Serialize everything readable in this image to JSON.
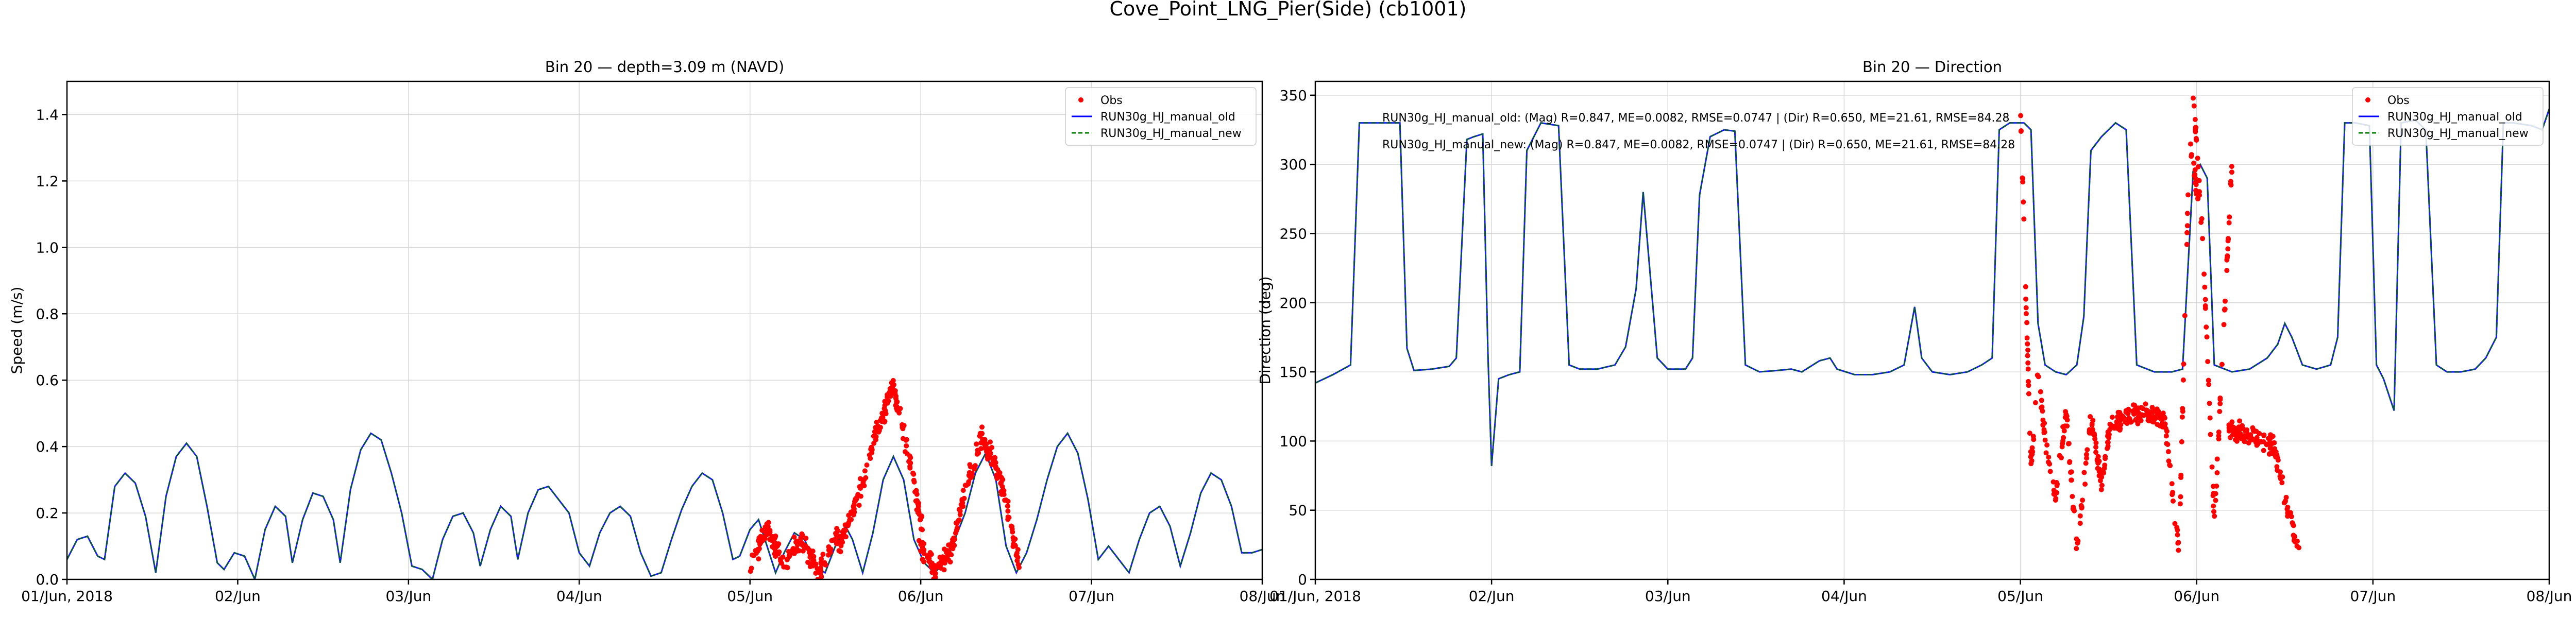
{
  "figure": {
    "suptitle": "Cove_Point_LNG_Pier(Side) (cb1001)"
  },
  "legend": {
    "obs": "Obs",
    "old": "RUN30g_HJ_manual_old",
    "new": "RUN30g_HJ_manual_new"
  },
  "colors": {
    "obs": "#ff0000",
    "old": "#0000ff",
    "new": "#008000",
    "model_overlap": "#0a5050"
  },
  "stats": {
    "old_line": "RUN30g_HJ_manual_old: (Mag) R=0.847, ME=0.0082, RMSE=0.0747 | (Dir) R=0.650, ME=21.61, RMSE=84.28",
    "new_line": "RUN30g_HJ_manual_new: (Mag) R=0.847, ME=0.0082, RMSE=0.0747 | (Dir) R=0.650, ME=21.61, RMSE=84.28"
  },
  "chart_data": [
    {
      "type": "line",
      "title": "Bin 20 — depth=3.09 m (NAVD)",
      "xlabel": "",
      "ylabel": "Speed (m/s)",
      "x_unit": "days since 2018-06-01 00:00",
      "xlim": [
        0,
        7
      ],
      "ylim": [
        0,
        1.5
      ],
      "xticks": [
        0,
        1,
        2,
        3,
        4,
        5,
        6,
        7
      ],
      "xtick_labels": [
        "01/Jun, 2018",
        "02/Jun",
        "03/Jun",
        "04/Jun",
        "05/Jun",
        "06/Jun",
        "07/Jun",
        "08/Jun"
      ],
      "yticks": [
        0,
        0.2,
        0.4,
        0.6,
        0.8,
        1.0,
        1.2,
        1.4
      ],
      "ytick_labels": [
        "0.0",
        "0.2",
        "0.4",
        "0.6",
        "0.8",
        "1.0",
        "1.2",
        "1.4"
      ],
      "grid": true,
      "legend_position": "top-right",
      "model_series": [
        [
          0.0,
          0.06
        ],
        [
          0.06,
          0.12
        ],
        [
          0.12,
          0.13
        ],
        [
          0.18,
          0.07
        ],
        [
          0.22,
          0.06
        ],
        [
          0.28,
          0.28
        ],
        [
          0.34,
          0.32
        ],
        [
          0.4,
          0.29
        ],
        [
          0.46,
          0.19
        ],
        [
          0.52,
          0.02
        ],
        [
          0.58,
          0.25
        ],
        [
          0.64,
          0.37
        ],
        [
          0.7,
          0.41
        ],
        [
          0.76,
          0.37
        ],
        [
          0.82,
          0.22
        ],
        [
          0.88,
          0.05
        ],
        [
          0.92,
          0.03
        ],
        [
          0.98,
          0.08
        ],
        [
          1.04,
          0.07
        ],
        [
          1.1,
          0.0
        ],
        [
          1.16,
          0.15
        ],
        [
          1.22,
          0.22
        ],
        [
          1.28,
          0.19
        ],
        [
          1.32,
          0.05
        ],
        [
          1.38,
          0.18
        ],
        [
          1.44,
          0.26
        ],
        [
          1.5,
          0.25
        ],
        [
          1.56,
          0.18
        ],
        [
          1.6,
          0.05
        ],
        [
          1.66,
          0.27
        ],
        [
          1.72,
          0.39
        ],
        [
          1.78,
          0.44
        ],
        [
          1.84,
          0.42
        ],
        [
          1.9,
          0.32
        ],
        [
          1.96,
          0.2
        ],
        [
          2.02,
          0.04
        ],
        [
          2.08,
          0.03
        ],
        [
          2.14,
          0.0
        ],
        [
          2.2,
          0.12
        ],
        [
          2.26,
          0.19
        ],
        [
          2.32,
          0.2
        ],
        [
          2.38,
          0.14
        ],
        [
          2.42,
          0.04
        ],
        [
          2.48,
          0.15
        ],
        [
          2.54,
          0.22
        ],
        [
          2.6,
          0.19
        ],
        [
          2.64,
          0.06
        ],
        [
          2.7,
          0.2
        ],
        [
          2.76,
          0.27
        ],
        [
          2.82,
          0.28
        ],
        [
          2.88,
          0.24
        ],
        [
          2.94,
          0.2
        ],
        [
          3.0,
          0.08
        ],
        [
          3.06,
          0.04
        ],
        [
          3.12,
          0.14
        ],
        [
          3.18,
          0.2
        ],
        [
          3.24,
          0.22
        ],
        [
          3.3,
          0.19
        ],
        [
          3.36,
          0.08
        ],
        [
          3.42,
          0.01
        ],
        [
          3.48,
          0.02
        ],
        [
          3.54,
          0.12
        ],
        [
          3.6,
          0.21
        ],
        [
          3.66,
          0.28
        ],
        [
          3.72,
          0.32
        ],
        [
          3.78,
          0.3
        ],
        [
          3.84,
          0.2
        ],
        [
          3.9,
          0.06
        ],
        [
          3.94,
          0.07
        ],
        [
          4.0,
          0.15
        ],
        [
          4.05,
          0.18
        ],
        [
          4.1,
          0.1
        ],
        [
          4.15,
          0.02
        ],
        [
          4.2,
          0.08
        ],
        [
          4.26,
          0.14
        ],
        [
          4.32,
          0.12
        ],
        [
          4.38,
          0.04
        ],
        [
          4.44,
          0.02
        ],
        [
          4.5,
          0.1
        ],
        [
          4.56,
          0.16
        ],
        [
          4.6,
          0.12
        ],
        [
          4.66,
          0.02
        ],
        [
          4.72,
          0.14
        ],
        [
          4.78,
          0.3
        ],
        [
          4.84,
          0.37
        ],
        [
          4.9,
          0.3
        ],
        [
          4.96,
          0.12
        ],
        [
          5.02,
          0.05
        ],
        [
          5.08,
          0.02
        ],
        [
          5.14,
          0.05
        ],
        [
          5.2,
          0.12
        ],
        [
          5.26,
          0.2
        ],
        [
          5.32,
          0.32
        ],
        [
          5.38,
          0.38
        ],
        [
          5.44,
          0.3
        ],
        [
          5.5,
          0.1
        ],
        [
          5.56,
          0.02
        ],
        [
          5.62,
          0.08
        ],
        [
          5.68,
          0.18
        ],
        [
          5.74,
          0.3
        ],
        [
          5.8,
          0.4
        ],
        [
          5.86,
          0.44
        ],
        [
          5.92,
          0.38
        ],
        [
          5.98,
          0.24
        ],
        [
          6.04,
          0.06
        ],
        [
          6.1,
          0.1
        ],
        [
          6.16,
          0.06
        ],
        [
          6.22,
          0.02
        ],
        [
          6.28,
          0.12
        ],
        [
          6.34,
          0.2
        ],
        [
          6.4,
          0.22
        ],
        [
          6.46,
          0.16
        ],
        [
          6.52,
          0.04
        ],
        [
          6.58,
          0.14
        ],
        [
          6.64,
          0.26
        ],
        [
          6.7,
          0.32
        ],
        [
          6.76,
          0.3
        ],
        [
          6.82,
          0.22
        ],
        [
          6.88,
          0.08
        ],
        [
          6.94,
          0.08
        ],
        [
          7.0,
          0.09
        ]
      ],
      "obs_windows": [
        {
          "x_start": 4.0,
          "x_end": 4.52,
          "segments": [
            [
              0.0,
              0.04
            ],
            [
              0.1,
              0.15
            ],
            [
              0.2,
              0.05
            ],
            [
              0.3,
              0.12
            ],
            [
              0.4,
              0.02
            ],
            [
              0.52,
              0.14
            ]
          ]
        },
        {
          "x_start": 4.52,
          "x_end": 5.02,
          "segments": [
            [
              0.0,
              0.1
            ],
            [
              0.15,
              0.3
            ],
            [
              0.22,
              0.45
            ],
            [
              0.32,
              0.58
            ],
            [
              0.42,
              0.35
            ],
            [
              0.5,
              0.12
            ]
          ]
        },
        {
          "x_start": 4.98,
          "x_end": 5.2,
          "segments": [
            [
              0.0,
              0.12
            ],
            [
              0.1,
              0.03
            ],
            [
              0.22,
              0.1
            ]
          ]
        },
        {
          "x_start": 5.18,
          "x_end": 5.58,
          "segments": [
            [
              0.0,
              0.1
            ],
            [
              0.1,
              0.3
            ],
            [
              0.18,
              0.43
            ],
            [
              0.28,
              0.32
            ],
            [
              0.4,
              0.04
            ]
          ]
        }
      ]
    },
    {
      "type": "line",
      "title": "Bin 20 — Direction",
      "xlabel": "",
      "ylabel": "Direction (deg)",
      "x_unit": "days since 2018-06-01 00:00",
      "xlim": [
        0,
        7
      ],
      "ylim": [
        0,
        360
      ],
      "xticks": [
        0,
        1,
        2,
        3,
        4,
        5,
        6,
        7
      ],
      "xtick_labels": [
        "01/Jun, 2018",
        "02/Jun",
        "03/Jun",
        "04/Jun",
        "05/Jun",
        "06/Jun",
        "07/Jun",
        "08/Jun"
      ],
      "yticks": [
        0,
        50,
        100,
        150,
        200,
        250,
        300,
        350
      ],
      "ytick_labels": [
        "0",
        "50",
        "100",
        "150",
        "200",
        "250",
        "300",
        "350"
      ],
      "grid": true,
      "legend_position": "top-right",
      "model_series": [
        [
          0.0,
          142
        ],
        [
          0.1,
          148
        ],
        [
          0.2,
          155
        ],
        [
          0.25,
          330
        ],
        [
          0.3,
          330
        ],
        [
          0.4,
          330
        ],
        [
          0.48,
          330
        ],
        [
          0.52,
          167
        ],
        [
          0.56,
          151
        ],
        [
          0.66,
          152
        ],
        [
          0.76,
          154
        ],
        [
          0.8,
          160
        ],
        [
          0.86,
          318
        ],
        [
          0.9,
          320
        ],
        [
          0.95,
          322
        ],
        [
          0.98,
          160
        ],
        [
          1.0,
          82
        ],
        [
          1.04,
          145
        ],
        [
          1.1,
          148
        ],
        [
          1.16,
          150
        ],
        [
          1.2,
          310
        ],
        [
          1.28,
          330
        ],
        [
          1.38,
          328
        ],
        [
          1.44,
          155
        ],
        [
          1.5,
          152
        ],
        [
          1.6,
          152
        ],
        [
          1.7,
          155
        ],
        [
          1.76,
          168
        ],
        [
          1.82,
          210
        ],
        [
          1.86,
          280
        ],
        [
          1.9,
          220
        ],
        [
          1.94,
          160
        ],
        [
          2.0,
          152
        ],
        [
          2.1,
          152
        ],
        [
          2.14,
          160
        ],
        [
          2.18,
          278
        ],
        [
          2.24,
          320
        ],
        [
          2.32,
          325
        ],
        [
          2.38,
          324
        ],
        [
          2.44,
          155
        ],
        [
          2.52,
          150
        ],
        [
          2.62,
          151
        ],
        [
          2.7,
          152
        ],
        [
          2.76,
          150
        ],
        [
          2.86,
          158
        ],
        [
          2.92,
          160
        ],
        [
          2.96,
          152
        ],
        [
          3.06,
          148
        ],
        [
          3.16,
          148
        ],
        [
          3.26,
          150
        ],
        [
          3.34,
          155
        ],
        [
          3.4,
          197
        ],
        [
          3.44,
          160
        ],
        [
          3.5,
          150
        ],
        [
          3.6,
          148
        ],
        [
          3.7,
          150
        ],
        [
          3.78,
          155
        ],
        [
          3.84,
          160
        ],
        [
          3.88,
          325
        ],
        [
          3.94,
          330
        ],
        [
          4.02,
          330
        ],
        [
          4.06,
          325
        ],
        [
          4.1,
          185
        ],
        [
          4.14,
          155
        ],
        [
          4.2,
          150
        ],
        [
          4.26,
          148
        ],
        [
          4.32,
          155
        ],
        [
          4.36,
          190
        ],
        [
          4.4,
          310
        ],
        [
          4.46,
          320
        ],
        [
          4.54,
          330
        ],
        [
          4.6,
          325
        ],
        [
          4.66,
          155
        ],
        [
          4.76,
          150
        ],
        [
          4.86,
          150
        ],
        [
          4.92,
          152
        ],
        [
          4.98,
          295
        ],
        [
          5.02,
          300
        ],
        [
          5.06,
          290
        ],
        [
          5.1,
          155
        ],
        [
          5.2,
          150
        ],
        [
          5.3,
          152
        ],
        [
          5.4,
          160
        ],
        [
          5.46,
          170
        ],
        [
          5.5,
          185
        ],
        [
          5.54,
          175
        ],
        [
          5.6,
          155
        ],
        [
          5.68,
          152
        ],
        [
          5.76,
          155
        ],
        [
          5.8,
          175
        ],
        [
          5.84,
          330
        ],
        [
          5.9,
          330
        ],
        [
          5.98,
          328
        ],
        [
          6.02,
          155
        ],
        [
          6.06,
          145
        ],
        [
          6.12,
          122
        ],
        [
          6.16,
          330
        ],
        [
          6.24,
          332
        ],
        [
          6.3,
          325
        ],
        [
          6.36,
          155
        ],
        [
          6.42,
          150
        ],
        [
          6.5,
          150
        ],
        [
          6.58,
          152
        ],
        [
          6.64,
          160
        ],
        [
          6.7,
          175
        ],
        [
          6.74,
          330
        ],
        [
          6.8,
          330
        ],
        [
          6.9,
          328
        ],
        [
          6.96,
          325
        ],
        [
          7.0,
          340
        ]
      ],
      "obs_windows": [
        {
          "x_start": 4.0,
          "x_end": 4.52,
          "segments": [
            [
              0.0,
              340
            ],
            [
              0.06,
              80
            ],
            [
              0.1,
              150
            ],
            [
              0.14,
              100
            ],
            [
              0.2,
              60
            ],
            [
              0.26,
              120
            ],
            [
              0.32,
              20
            ],
            [
              0.4,
              115
            ],
            [
              0.46,
              70
            ],
            [
              0.52,
              120
            ]
          ]
        },
        {
          "x_start": 4.52,
          "x_end": 5.02,
          "segments": [
            [
              0.0,
              112
            ],
            [
              0.1,
              118
            ],
            [
              0.2,
              120
            ],
            [
              0.3,
              115
            ],
            [
              0.38,
              20
            ],
            [
              0.44,
              320
            ],
            [
              0.5,
              260
            ]
          ]
        },
        {
          "x_start": 4.98,
          "x_end": 5.2,
          "segments": [
            [
              0.0,
              355
            ],
            [
              0.06,
              230
            ],
            [
              0.12,
              40
            ],
            [
              0.22,
              300
            ]
          ]
        },
        {
          "x_start": 5.18,
          "x_end": 5.58,
          "segments": [
            [
              0.0,
              110
            ],
            [
              0.1,
              105
            ],
            [
              0.18,
              100
            ],
            [
              0.26,
              95
            ],
            [
              0.32,
              60
            ],
            [
              0.4,
              20
            ]
          ]
        }
      ]
    }
  ]
}
